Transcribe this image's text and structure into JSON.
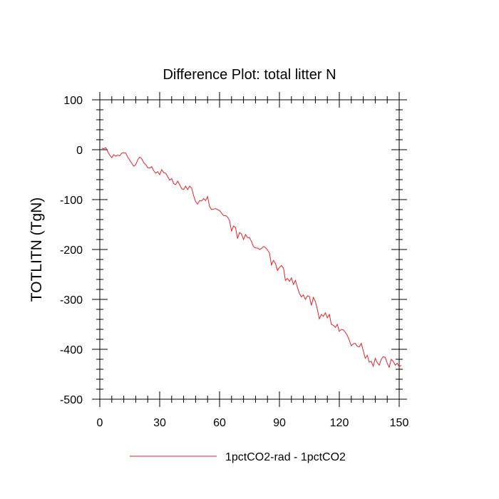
{
  "chart_data": {
    "type": "line",
    "title": "Difference Plot: total litter N",
    "xlabel": "",
    "ylabel": "TOTLITN  (TgN)",
    "xlim": [
      0,
      150
    ],
    "ylim": [
      -500,
      100
    ],
    "xticks": [
      0,
      30,
      60,
      90,
      120,
      150
    ],
    "yticks": [
      100,
      0,
      -100,
      -200,
      -300,
      -400,
      -500
    ],
    "grid": false,
    "legend_position": "bottom",
    "series": [
      {
        "name": "1pctCO2-rad - 1pctCO2",
        "color": "#e8202a",
        "x": [
          1,
          2,
          3,
          4,
          5,
          6,
          7,
          8,
          9,
          10,
          11,
          12,
          13,
          14,
          15,
          16,
          17,
          18,
          19,
          20,
          21,
          22,
          23,
          24,
          25,
          26,
          27,
          28,
          29,
          30,
          31,
          32,
          33,
          34,
          35,
          36,
          37,
          38,
          39,
          40,
          41,
          42,
          43,
          44,
          45,
          46,
          47,
          48,
          49,
          50,
          51,
          52,
          53,
          54,
          55,
          56,
          57,
          58,
          59,
          60,
          61,
          62,
          63,
          64,
          65,
          66,
          67,
          68,
          69,
          70,
          71,
          72,
          73,
          74,
          75,
          76,
          77,
          78,
          79,
          80,
          81,
          82,
          83,
          84,
          85,
          86,
          87,
          88,
          89,
          90,
          91,
          92,
          93,
          94,
          95,
          96,
          97,
          98,
          99,
          100,
          101,
          102,
          103,
          104,
          105,
          106,
          107,
          108,
          109,
          110,
          111,
          112,
          113,
          114,
          115,
          116,
          117,
          118,
          119,
          120,
          121,
          122,
          123,
          124,
          125,
          126,
          127,
          128,
          129,
          130,
          131,
          132,
          133,
          134,
          135,
          136,
          137,
          138,
          139,
          140,
          141,
          142,
          143,
          144,
          145,
          146,
          147,
          148,
          149,
          150,
          151
        ],
        "y": [
          3,
          2,
          4,
          -4,
          -11,
          -16,
          -10,
          -13,
          -11,
          -12,
          -7,
          -6,
          -7,
          -15,
          -21,
          -27,
          -33,
          -30,
          -20,
          -15,
          -18,
          -26,
          -30,
          -36,
          -37,
          -34,
          -42,
          -47,
          -44,
          -50,
          -40,
          -46,
          -47,
          -54,
          -61,
          -58,
          -68,
          -70,
          -63,
          -70,
          -78,
          -80,
          -73,
          -80,
          -73,
          -77,
          -92,
          -104,
          -109,
          -102,
          -103,
          -98,
          -102,
          -94,
          -114,
          -120,
          -119,
          -118,
          -120,
          -122,
          -127,
          -132,
          -132,
          -135,
          -142,
          -163,
          -153,
          -156,
          -178,
          -166,
          -169,
          -180,
          -170,
          -176,
          -176,
          -184,
          -194,
          -197,
          -197,
          -200,
          -198,
          -194,
          -196,
          -201,
          -207,
          -231,
          -222,
          -228,
          -242,
          -236,
          -232,
          -237,
          -262,
          -258,
          -264,
          -257,
          -270,
          -262,
          -276,
          -288,
          -295,
          -291,
          -300,
          -293,
          -294,
          -312,
          -296,
          -304,
          -320,
          -339,
          -330,
          -334,
          -327,
          -337,
          -330,
          -350,
          -352,
          -356,
          -350,
          -364,
          -360,
          -361,
          -366,
          -372,
          -382,
          -393,
          -389,
          -388,
          -394,
          -395,
          -388,
          -403,
          -418,
          -412,
          -426,
          -424,
          -434,
          -418,
          -427,
          -432,
          -420,
          -415,
          -416,
          -428,
          -436,
          -420,
          -424,
          -432,
          -428,
          -435,
          -432
        ]
      }
    ]
  }
}
